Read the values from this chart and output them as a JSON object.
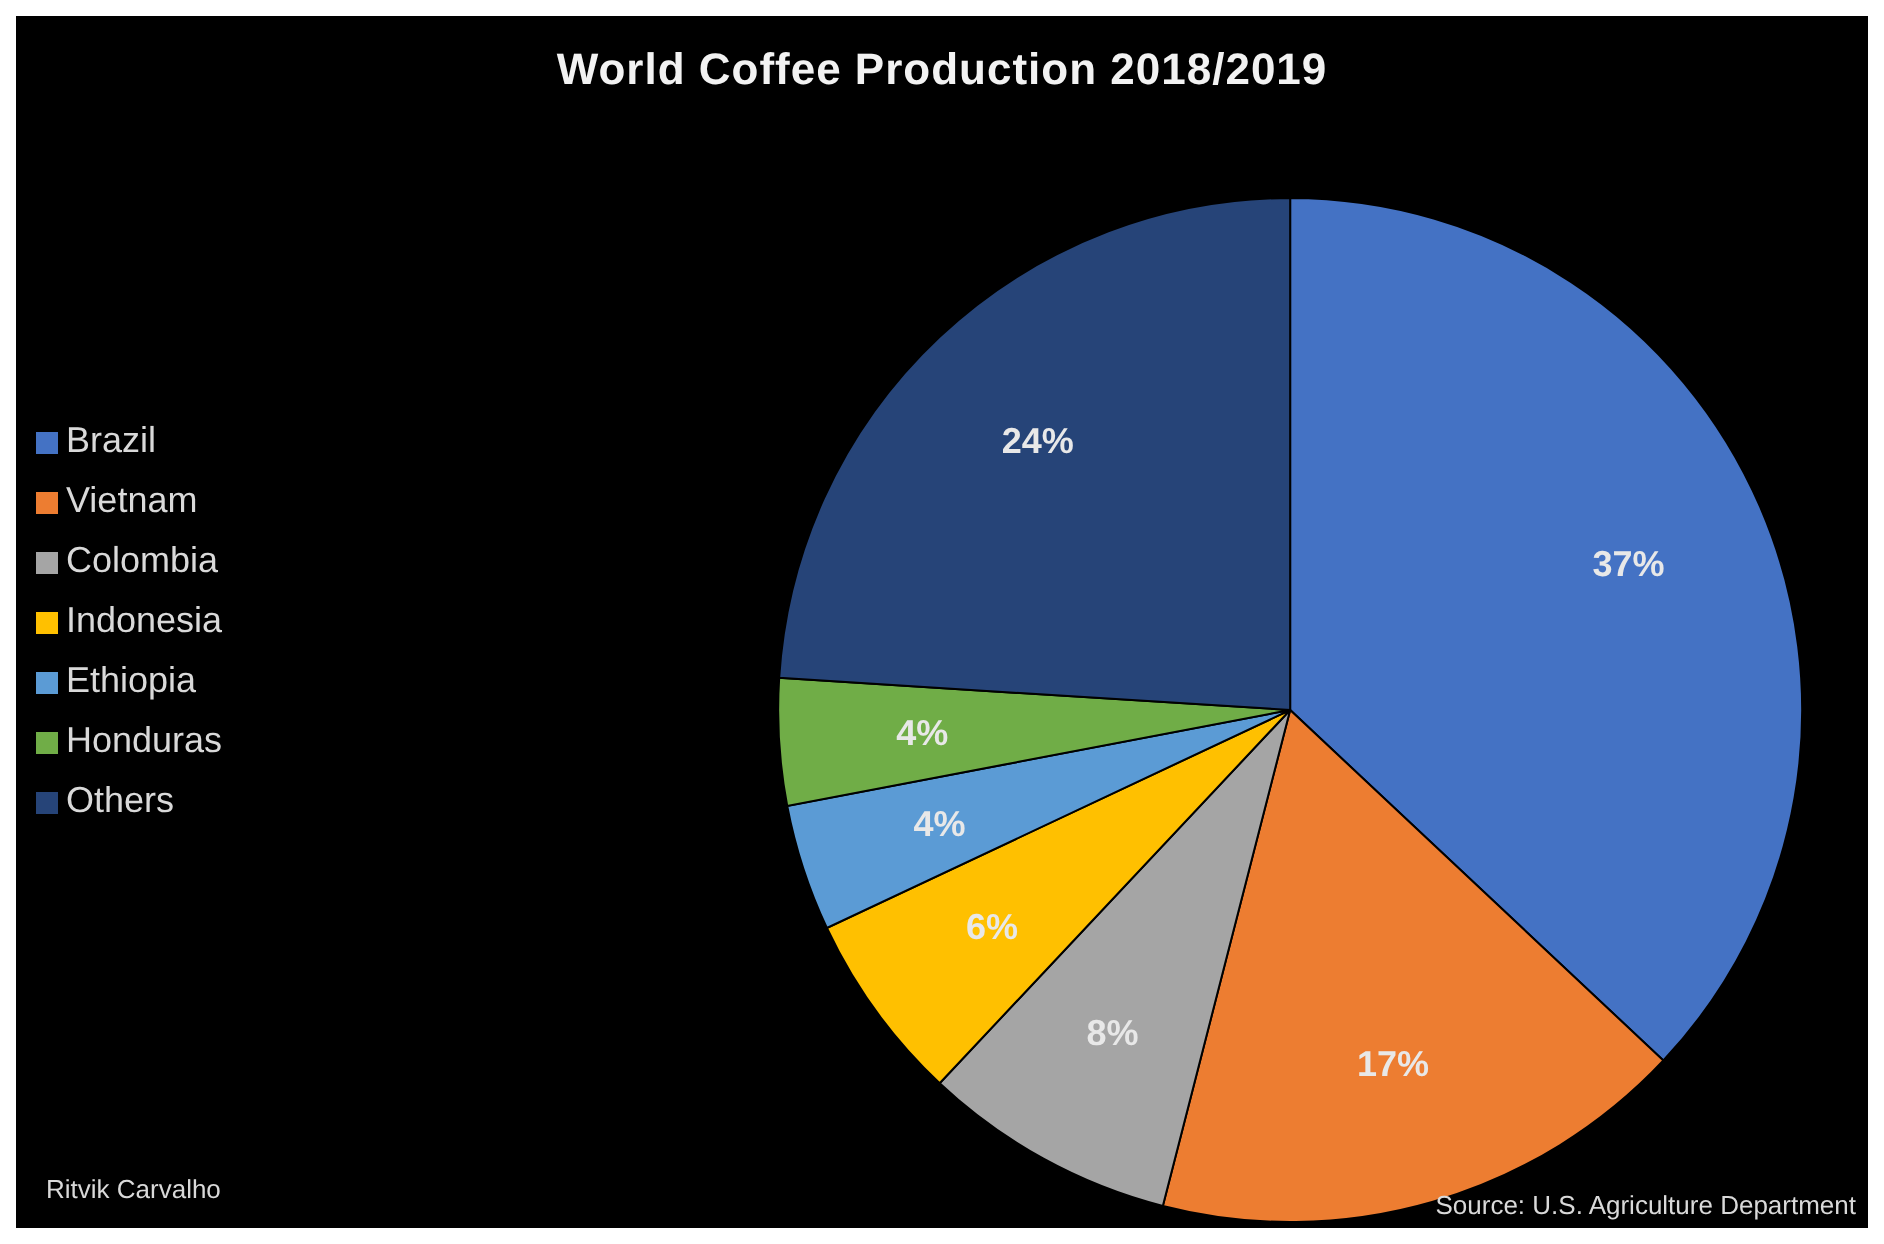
{
  "chart_data": {
    "type": "pie",
    "title": "World Coffee Production 2018/2019",
    "categories": [
      "Brazil",
      "Vietnam",
      "Colombia",
      "Indonesia",
      "Ethiopia",
      "Honduras",
      "Others"
    ],
    "values": [
      37,
      17,
      8,
      6,
      4,
      4,
      24
    ],
    "value_labels": [
      "37%",
      "17%",
      "8%",
      "6%",
      "4%",
      "4%",
      "24%"
    ],
    "colors": [
      "#4472c4",
      "#ed7d31",
      "#a5a5a5",
      "#ffc000",
      "#5b9bd5",
      "#70ad47",
      "#264478"
    ],
    "legend": "left",
    "annotations": [
      "Ritvik Carvalho",
      "Source: U.S. Agriculture Department"
    ]
  }
}
